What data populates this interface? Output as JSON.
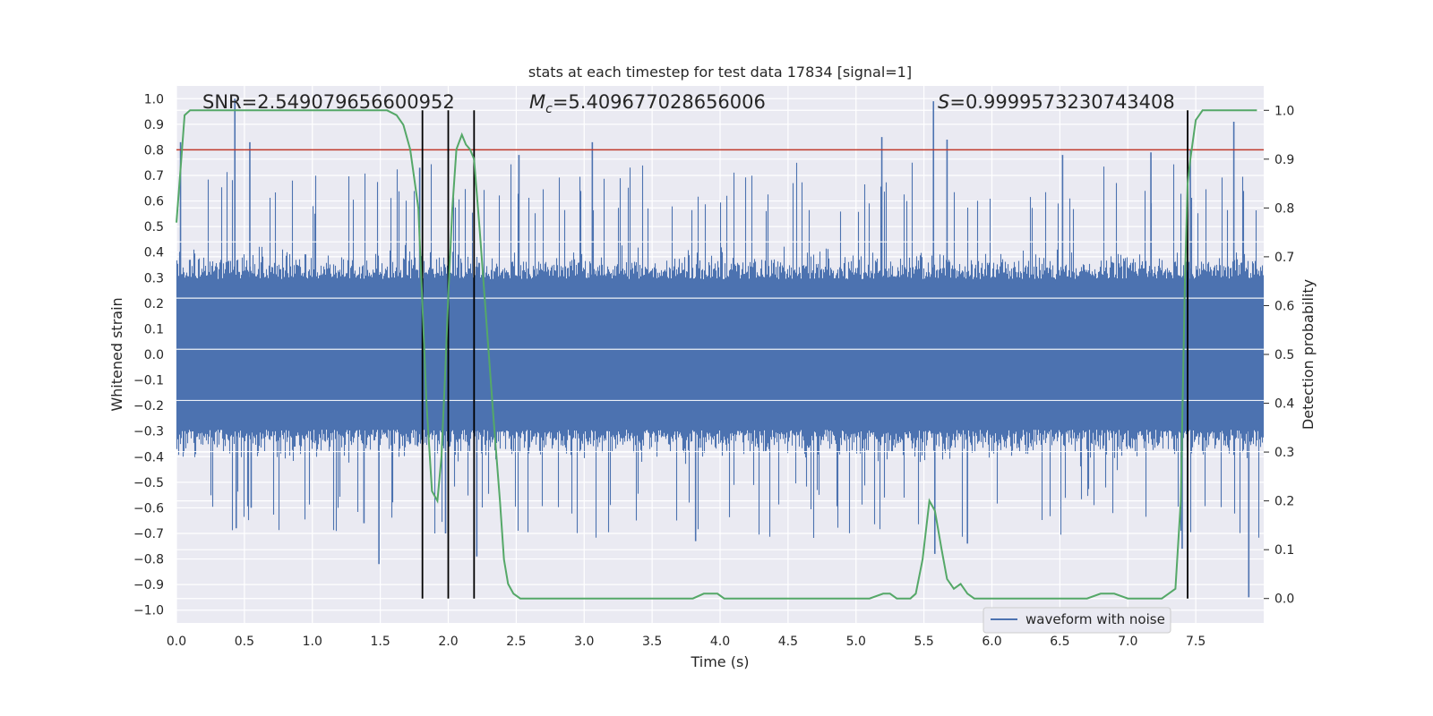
{
  "chart_data": {
    "type": "line",
    "title": "stats at each timestep for test data 17834 [signal=1]",
    "xlabel": "Time (s)",
    "ylabel_left": "Whitened strain",
    "ylabel_right": "Detection probability",
    "xlim": [
      0.0,
      8.0
    ],
    "ylim_left": [
      -1.05,
      1.05
    ],
    "ylim_right": [
      -0.05,
      1.05
    ],
    "x_ticks": [
      "0.0",
      "0.5",
      "1.0",
      "1.5",
      "2.0",
      "2.5",
      "3.0",
      "3.5",
      "4.0",
      "4.5",
      "5.0",
      "5.5",
      "6.0",
      "6.5",
      "7.0",
      "7.5"
    ],
    "y_left_ticks": [
      "1.0",
      "0.9",
      "0.8",
      "0.7",
      "0.6",
      "0.5",
      "0.4",
      "0.3",
      "0.2",
      "0.1",
      "0.0",
      "-0.1",
      "-0.2",
      "-0.3",
      "-0.4",
      "-0.5",
      "-0.6",
      "-0.7",
      "-0.8",
      "-0.9",
      "-1.0"
    ],
    "y_right_ticks": [
      "1.0",
      "0.9",
      "0.8",
      "0.7",
      "0.6",
      "0.5",
      "0.4",
      "0.3",
      "0.2",
      "0.1",
      "0.0"
    ],
    "annotations": {
      "snr": "SNR=2.549079656600952",
      "mc_symbol": "M",
      "mc_sub": "c",
      "mc_value": "=5.409677028656006",
      "s_symbol": "S",
      "s_value": "=0.9999573230743408"
    },
    "threshold": {
      "y": 0.8,
      "color": "#c0392b"
    },
    "vertical_lines": [
      1.81,
      2.0,
      2.19,
      7.44
    ],
    "series": [
      {
        "name": "waveform with noise",
        "axis": "left",
        "color": "#4c72b0",
        "envelope": [
          0.42,
          -0.42
        ],
        "spikes": [
          [
            0.03,
            0.83
          ],
          [
            0.43,
            1.0
          ],
          [
            0.44,
            -0.68
          ],
          [
            0.54,
            0.83
          ],
          [
            0.55,
            -0.6
          ],
          [
            1.49,
            -0.82
          ],
          [
            1.38,
            -0.66
          ],
          [
            1.79,
            0.73
          ],
          [
            1.98,
            -0.7
          ],
          [
            2.21,
            -0.79
          ],
          [
            2.52,
            0.78
          ],
          [
            3.06,
            0.83
          ],
          [
            3.82,
            -0.73
          ],
          [
            5.19,
            0.85
          ],
          [
            5.57,
            0.99
          ],
          [
            5.58,
            -0.78
          ],
          [
            5.67,
            0.84
          ],
          [
            5.82,
            -0.74
          ],
          [
            6.52,
            0.78
          ],
          [
            7.17,
            0.79
          ],
          [
            7.78,
            0.91
          ],
          [
            7.89,
            -0.95
          ],
          [
            7.4,
            -0.76
          ],
          [
            7.46,
            0.8
          ]
        ],
        "range": "-0.95 .. 1.0"
      },
      {
        "name": "Detection probability",
        "axis": "right",
        "color": "#55a868",
        "x": [
          0.0,
          0.03,
          0.06,
          0.1,
          0.2,
          0.3,
          0.5,
          0.7,
          1.0,
          1.3,
          1.55,
          1.62,
          1.67,
          1.72,
          1.78,
          1.81,
          1.84,
          1.88,
          1.92,
          1.95,
          1.98,
          2.0,
          2.03,
          2.06,
          2.1,
          2.13,
          2.16,
          2.19,
          2.23,
          2.28,
          2.33,
          2.38,
          2.41,
          2.44,
          2.48,
          2.53,
          2.6,
          2.8,
          3.0,
          3.3,
          3.6,
          3.8,
          3.88,
          3.93,
          3.98,
          4.03,
          4.1,
          4.3,
          4.5,
          4.7,
          4.9,
          5.1,
          5.2,
          5.25,
          5.3,
          5.35,
          5.4,
          5.44,
          5.49,
          5.54,
          5.58,
          5.63,
          5.67,
          5.72,
          5.77,
          5.82,
          5.87,
          5.95,
          6.1,
          6.3,
          6.5,
          6.7,
          6.8,
          6.9,
          7.0,
          7.1,
          7.2,
          7.25,
          7.3,
          7.35,
          7.39,
          7.42,
          7.44,
          7.46,
          7.5,
          7.55,
          7.6,
          7.7,
          7.8,
          7.95
        ],
        "y": [
          0.77,
          0.88,
          0.99,
          1.0,
          1.0,
          1.0,
          1.0,
          1.0,
          1.0,
          1.0,
          1.0,
          0.99,
          0.97,
          0.92,
          0.8,
          0.6,
          0.4,
          0.22,
          0.2,
          0.29,
          0.48,
          0.62,
          0.8,
          0.92,
          0.95,
          0.93,
          0.92,
          0.9,
          0.76,
          0.57,
          0.38,
          0.2,
          0.08,
          0.03,
          0.01,
          0.0,
          0.0,
          0.0,
          0.0,
          0.0,
          0.0,
          0.0,
          0.01,
          0.01,
          0.01,
          0.0,
          0.0,
          0.0,
          0.0,
          0.0,
          0.0,
          0.0,
          0.01,
          0.01,
          0.0,
          0.0,
          0.0,
          0.01,
          0.08,
          0.2,
          0.18,
          0.1,
          0.04,
          0.02,
          0.03,
          0.01,
          0.0,
          0.0,
          0.0,
          0.0,
          0.0,
          0.0,
          0.01,
          0.01,
          0.0,
          0.0,
          0.0,
          0.0,
          0.01,
          0.02,
          0.2,
          0.65,
          0.85,
          0.9,
          0.98,
          1.0,
          1.0,
          1.0,
          1.0,
          1.0
        ]
      }
    ],
    "legend": {
      "label": "waveform with noise",
      "placement": "lower-right"
    }
  }
}
